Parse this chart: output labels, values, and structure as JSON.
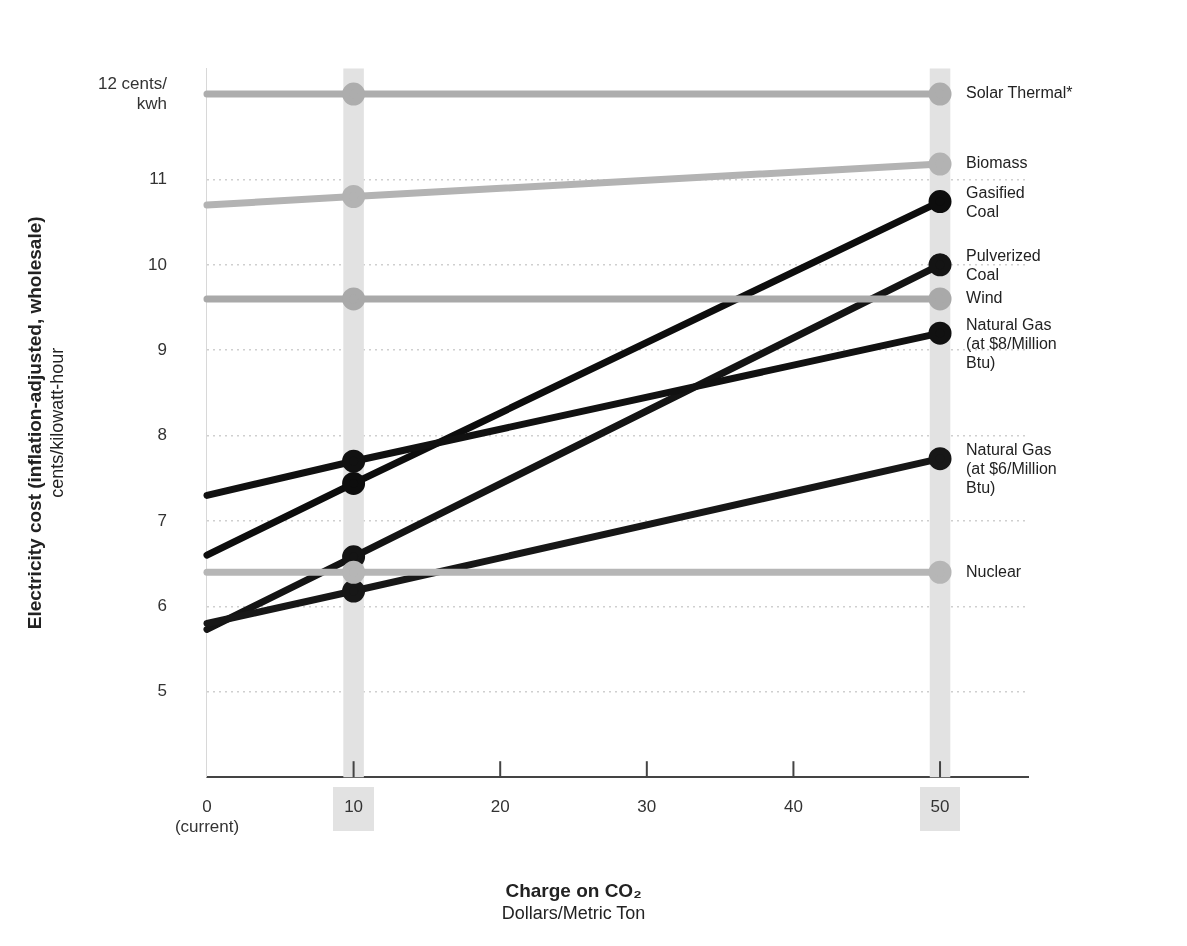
{
  "chart_data": {
    "type": "line",
    "xlabel": "Charge on CO₂\nDollars/Metric Ton",
    "ylabel": "Electricity cost (inflation-adjusted, wholesale)\ncents/kilowatt-hour",
    "x": [
      0,
      10,
      50
    ],
    "series": [
      {
        "name": "Solar Thermal*",
        "color": "#adadad",
        "values": [
          12,
          12,
          12
        ]
      },
      {
        "name": "Biomass",
        "color": "#b3b3b3",
        "values": [
          10.7,
          10.8,
          11.18
        ]
      },
      {
        "name": "Gasified\nCoal",
        "color": "#0d0d0d",
        "values": [
          6.6,
          7.44,
          10.74
        ]
      },
      {
        "name": "Pulverized\nCoal",
        "color": "#141414",
        "values": [
          5.73,
          6.58,
          10.0
        ]
      },
      {
        "name": "Wind",
        "color": "#a9a9a9",
        "values": [
          9.6,
          9.6,
          9.6
        ]
      },
      {
        "name": "Natural Gas\n(at $8/Million\nBtu)",
        "color": "#111111",
        "values": [
          7.3,
          7.7,
          9.2
        ]
      },
      {
        "name": "Natural Gas\n(at $6/Million\nBtu)",
        "color": "#171717",
        "values": [
          5.8,
          6.18,
          7.73
        ]
      },
      {
        "name": "Nuclear",
        "color": "#b6b6b6",
        "values": [
          6.4,
          6.4,
          6.4
        ]
      }
    ],
    "xlim": [
      0,
      56
    ],
    "xticks": [
      {
        "value": 0,
        "label": "0\n(current)"
      },
      10,
      20,
      30,
      40,
      50
    ],
    "ylim": [
      4,
      12.3
    ],
    "yticks": [
      5,
      6,
      7,
      8,
      9,
      10,
      11,
      {
        "value": 12,
        "label": "12 cents/\nkwh"
      }
    ],
    "bands": [
      {
        "axis": "x",
        "from": 9.3,
        "to": 10.7,
        "color": "#e2e2e2"
      },
      {
        "axis": "x",
        "from": 49.3,
        "to": 50.7,
        "color": "#e2e2e2"
      }
    ],
    "grid": "y",
    "legend": false,
    "marker": "circle",
    "line_style": "solid"
  }
}
